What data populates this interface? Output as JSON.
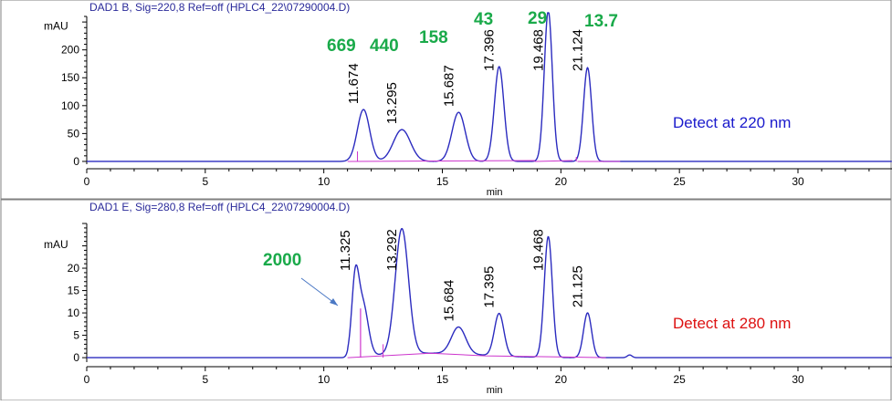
{
  "chart_data": [
    {
      "type": "line",
      "title": "DAD1 B, Sig=220,8 Ref=off (HPLC4_22\\07290004.D)",
      "xlabel": "min",
      "ylabel": "mAU",
      "xlim": [
        0,
        35
      ],
      "ylim": [
        -5,
        260
      ],
      "xticks": [
        0,
        5,
        10,
        15,
        20,
        25,
        30
      ],
      "yticks": [
        0,
        50,
        100,
        150,
        200
      ],
      "grid": false,
      "line_color": "#2b2bbf",
      "baseline_color": "#cc33cc",
      "peaks": [
        {
          "rt": 11.674,
          "label": "11.674",
          "height": 93,
          "width": 0.26
        },
        {
          "rt": 13.295,
          "label": "13.295",
          "height": 57,
          "width": 0.36
        },
        {
          "rt": 15.687,
          "label": "15.687",
          "height": 88,
          "width": 0.28
        },
        {
          "rt": 17.396,
          "label": "17.396",
          "height": 170,
          "width": 0.2
        },
        {
          "rt": 19.468,
          "label": "19.468",
          "height": 270,
          "width": 0.17
        },
        {
          "rt": 21.124,
          "label": "21.124",
          "height": 168,
          "width": 0.17
        }
      ],
      "annotations": [
        {
          "text": "669",
          "near": 11.674
        },
        {
          "text": "440",
          "near": 13.295
        },
        {
          "text": "158",
          "near": 15.687
        },
        {
          "text": "43",
          "near": 17.396
        },
        {
          "text": "29",
          "near": 19.468
        },
        {
          "text": "13.7",
          "near": 21.124
        }
      ],
      "annotation_color": "#1aaa4a",
      "detect_label": "Detect at 220 nm",
      "detect_color": "#1a1acc"
    },
    {
      "type": "line",
      "title": "DAD1 E, Sig=280,8 Ref=off (HPLC4_22\\07290004.D)",
      "xlabel": "min",
      "ylabel": "mAU",
      "xlim": [
        0,
        35
      ],
      "ylim": [
        -1,
        30
      ],
      "xticks": [
        0,
        5,
        10,
        15,
        20,
        25,
        30
      ],
      "yticks": [
        0,
        5,
        10,
        15,
        20
      ],
      "grid": false,
      "line_color": "#2b2bbf",
      "baseline_color": "#cc33cc",
      "peaks": [
        {
          "rt": 11.325,
          "label": "11.325",
          "height": 16,
          "width": 0.15
        },
        {
          "rt": 11.65,
          "label": "",
          "height": 11.5,
          "width": 0.22
        },
        {
          "rt": 13.292,
          "label": "13.292",
          "height": 28,
          "width": 0.28
        },
        {
          "rt": 15.684,
          "label": "15.684",
          "height": 6,
          "width": 0.3
        },
        {
          "rt": 17.395,
          "label": "17.395",
          "height": 9.5,
          "width": 0.2
        },
        {
          "rt": 19.468,
          "label": "19.468",
          "height": 27,
          "width": 0.17
        },
        {
          "rt": 21.125,
          "label": "21.125",
          "height": 10,
          "width": 0.17
        },
        {
          "rt": 22.9,
          "label": "",
          "height": 0.6,
          "width": 0.1
        }
      ],
      "annotations": [
        {
          "text": "2000",
          "near": 11.325,
          "arrow": true
        }
      ],
      "annotation_color": "#1aaa4a",
      "detect_label": "Detect at 280 nm",
      "detect_color": "#dd1111"
    }
  ]
}
